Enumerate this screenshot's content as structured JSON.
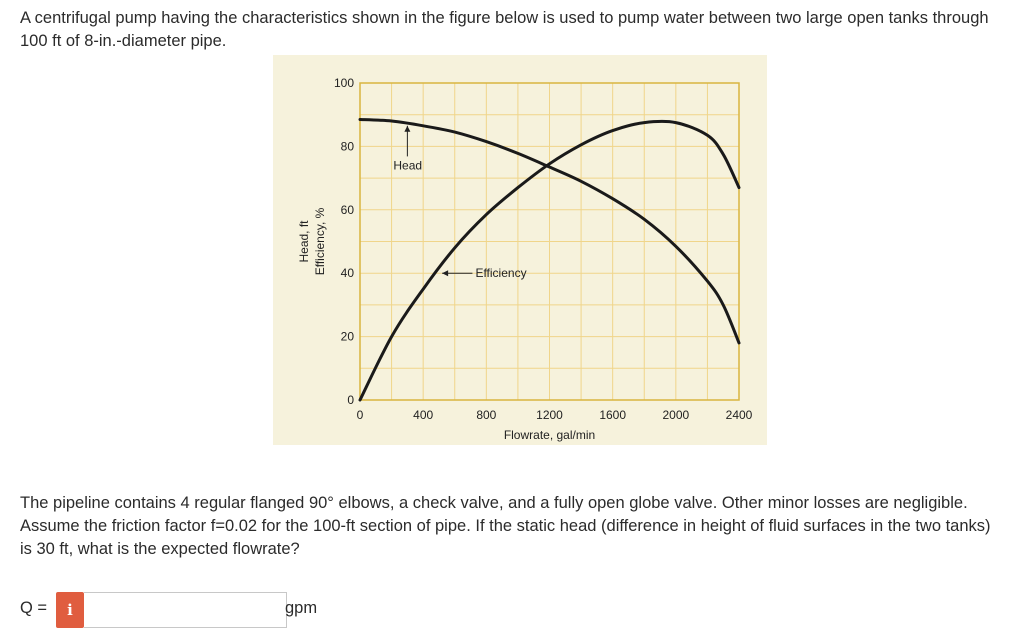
{
  "problem": {
    "intro": "A centrifugal pump having the characteristics shown in the figure below is used to pump water between two large open tanks through 100 ft of 8-in.-diameter pipe.",
    "details": "The pipeline contains 4 regular flanged 90° elbows, a check valve, and a fully open globe valve. Other minor losses are negligible. Assume the friction factor f=0.02 for the 100-ft section of pipe. If the static head (difference in height of fluid surfaces in the two tanks) is 30 ft, what is the expected flowrate?"
  },
  "answer": {
    "label": "Q =",
    "info_icon": "i",
    "value": "",
    "placeholder": "",
    "unit": "gpm"
  },
  "colors": {
    "figure_background": "#f6f2dc",
    "grid": "#f0d58a",
    "curve": "#1a1a1a",
    "info_button": "#e05d3f"
  },
  "chart_data": {
    "type": "line",
    "title": "",
    "xlabel": "Flowrate, gal/min",
    "ylabel_lines": [
      "Head, ft",
      "Efficiency, %"
    ],
    "xlim": [
      0,
      2400
    ],
    "ylim": [
      0,
      100
    ],
    "x_ticks": [
      "0",
      "400",
      "800",
      "1200",
      "1600",
      "2000",
      "2400"
    ],
    "y_ticks": [
      "0",
      "20",
      "40",
      "60",
      "80",
      "100"
    ],
    "grid": true,
    "series": [
      {
        "name": "Head",
        "x": [
          0,
          200,
          400,
          600,
          800,
          1000,
          1200,
          1400,
          1600,
          1800,
          2000,
          2200,
          2300,
          2400
        ],
        "y": [
          88.5,
          88,
          86.5,
          84.5,
          81.5,
          77.8,
          73.5,
          69,
          63.5,
          57,
          48.5,
          37.5,
          30,
          18
        ]
      },
      {
        "name": "Efficiency",
        "x": [
          0,
          200,
          400,
          600,
          800,
          1000,
          1200,
          1400,
          1600,
          1800,
          2000,
          2200,
          2300,
          2400
        ],
        "y": [
          0,
          20,
          35,
          48,
          58.5,
          67,
          74.5,
          80.5,
          85,
          87.5,
          87.5,
          83.5,
          77.5,
          67
        ]
      }
    ],
    "annotations": [
      {
        "text": "Head",
        "x": 300,
        "y": 80
      },
      {
        "text": "Efficiency",
        "x": 750,
        "y": 40
      }
    ]
  }
}
